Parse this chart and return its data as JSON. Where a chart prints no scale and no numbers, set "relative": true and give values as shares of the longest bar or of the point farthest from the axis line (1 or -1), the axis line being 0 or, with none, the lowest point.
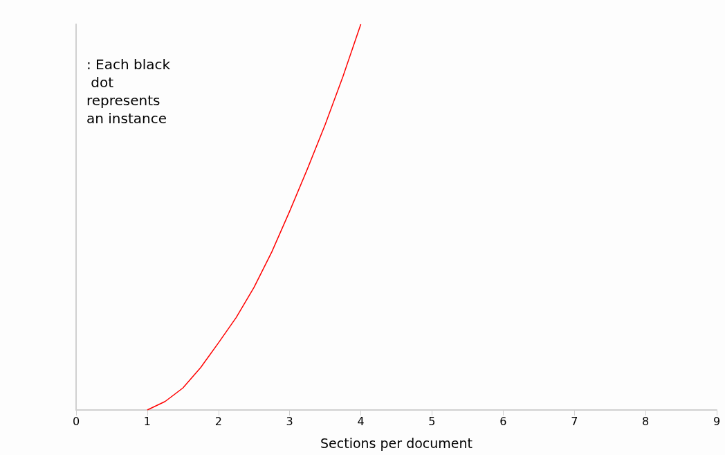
{
  "chart_data": {
    "type": "line",
    "xlabel": "Sections per document",
    "annotations": [
      ": Each black dot represents an instance"
    ],
    "relative": true,
    "tick_labels": "x",
    "grid": false,
    "marker": "none",
    "xlim": [
      0,
      9
    ],
    "xticks": [
      0,
      1,
      2,
      3,
      4,
      5,
      6,
      7,
      8,
      9
    ],
    "series": [
      {
        "color": "#ff0000",
        "x": [
          1,
          1.25,
          1.5,
          1.75,
          2,
          2.25,
          2.5,
          2.75,
          3,
          3.25,
          3.5,
          3.75,
          4
        ],
        "values": [
          0,
          0.022,
          0.057,
          0.11,
          0.174,
          0.24,
          0.318,
          0.41,
          0.515,
          0.625,
          0.74,
          0.865,
          1
        ]
      }
    ]
  }
}
